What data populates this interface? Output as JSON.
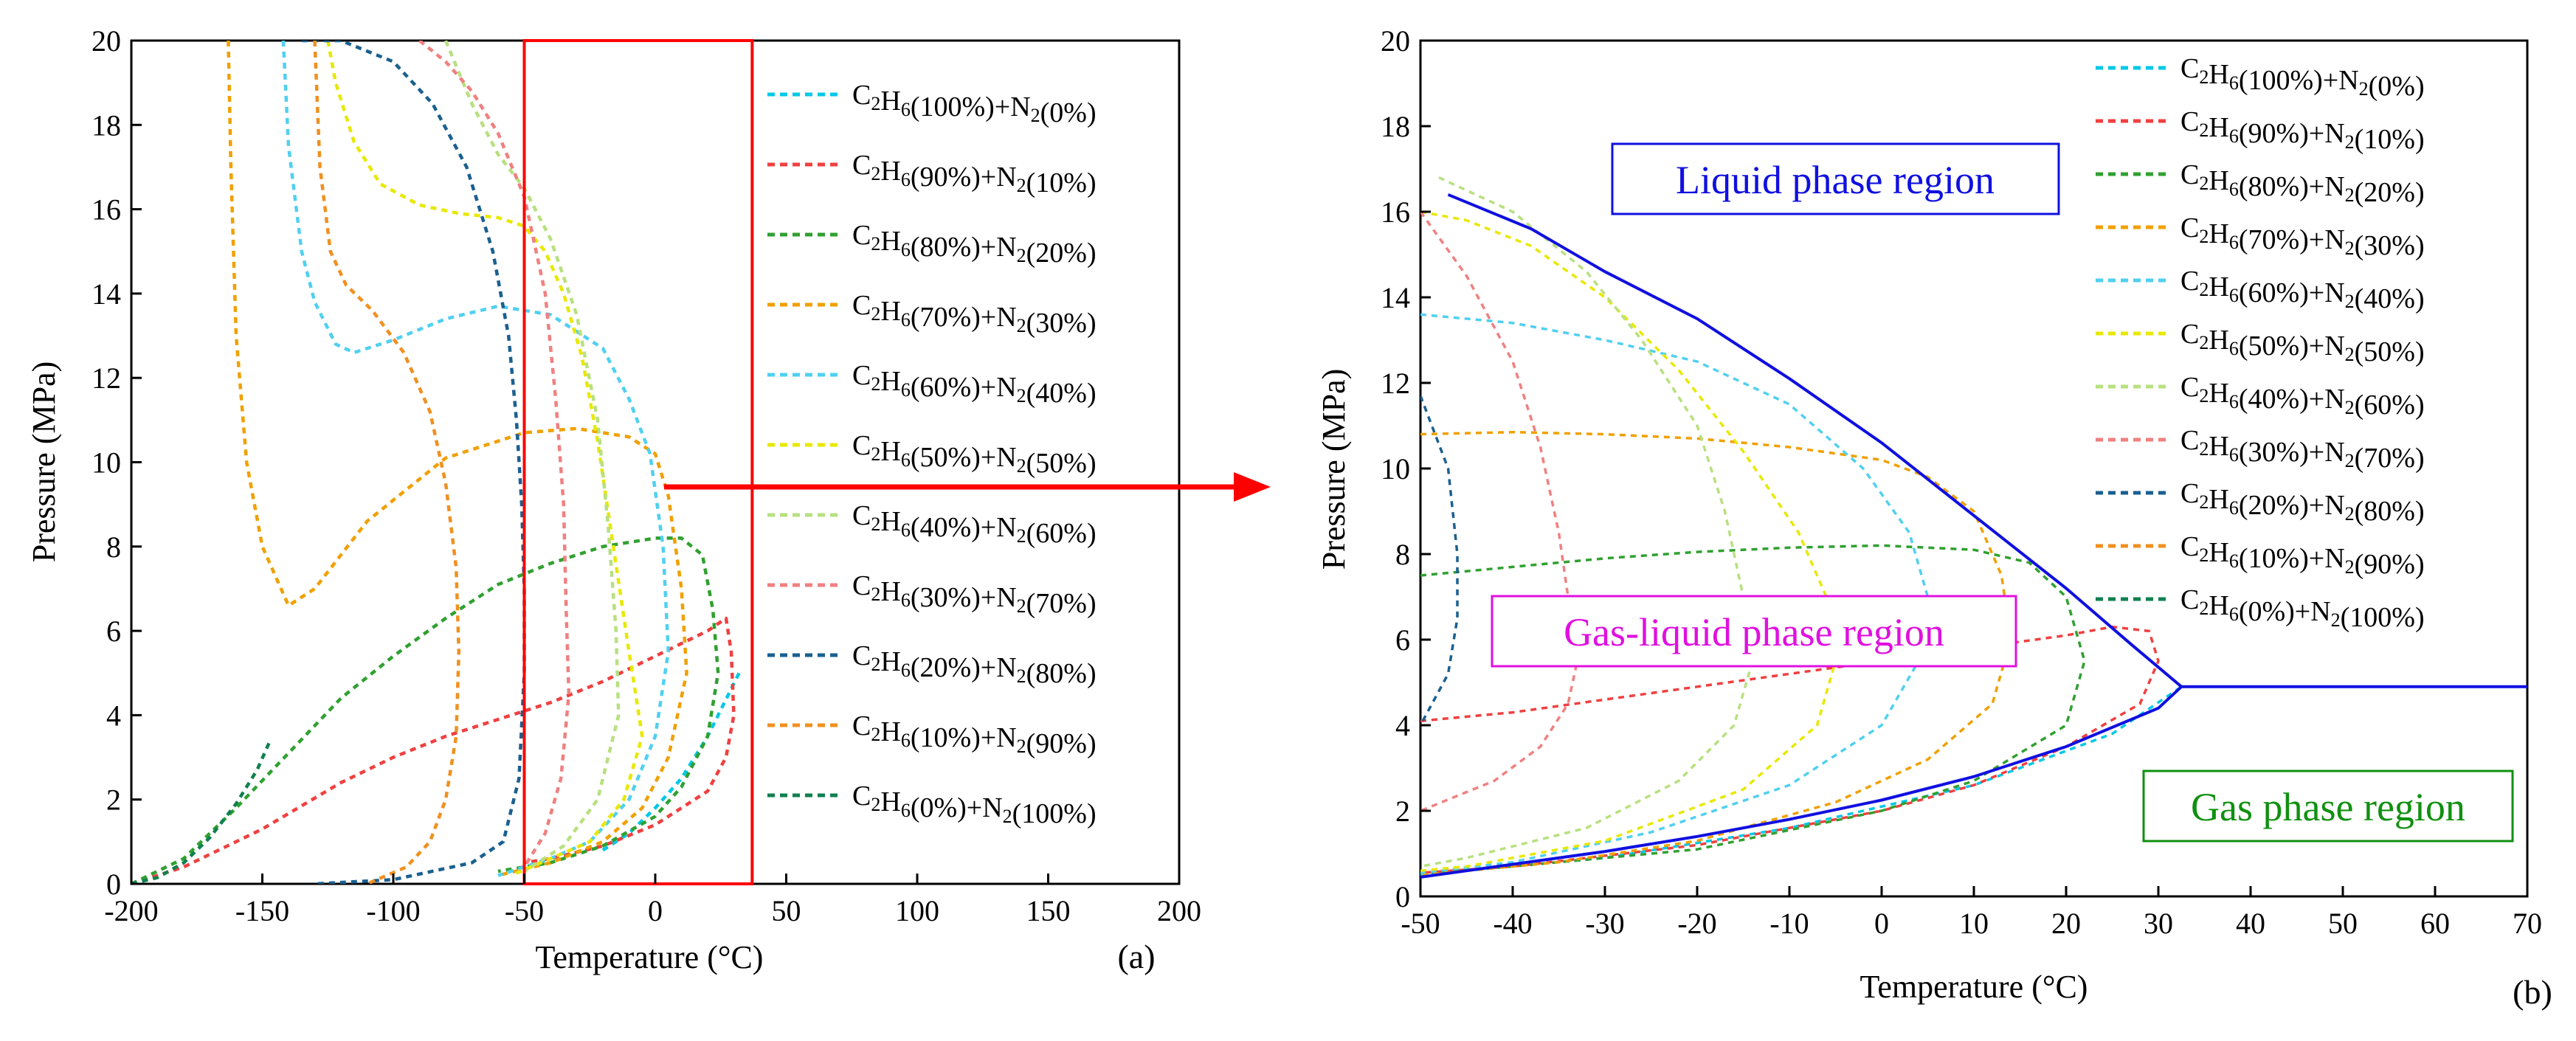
{
  "figure": {
    "arrow_color": "#ff0000",
    "box_color": "#ff0000"
  },
  "series_meta": [
    {
      "label": "C2H6(100%)+N2(0%)",
      "c2h6": "100%",
      "n2": "0%",
      "color": "#00c8e6",
      "dash": "8,7"
    },
    {
      "label": "C2H6(90%)+N2(10%)",
      "c2h6": "90%",
      "n2": "10%",
      "color": "#f04040",
      "dash": "8,7"
    },
    {
      "label": "C2H6(80%)+N2(20%)",
      "c2h6": "80%",
      "n2": "20%",
      "color": "#30a030",
      "dash": "8,7"
    },
    {
      "label": "C2H6(70%)+N2(30%)",
      "c2h6": "70%",
      "n2": "30%",
      "color": "#f0a000",
      "dash": "8,7"
    },
    {
      "label": "C2H6(60%)+N2(40%)",
      "c2h6": "60%",
      "n2": "40%",
      "color": "#50d0f0",
      "dash": "8,7"
    },
    {
      "label": "C2H6(50%)+N2(50%)",
      "c2h6": "50%",
      "n2": "50%",
      "color": "#e8e800",
      "dash": "8,7"
    },
    {
      "label": "C2H6(40%)+N2(60%)",
      "c2h6": "40%",
      "n2": "60%",
      "color": "#b8e080",
      "dash": "8,7"
    },
    {
      "label": "C2H6(30%)+N2(70%)",
      "c2h6": "30%",
      "n2": "70%",
      "color": "#f08080",
      "dash": "8,7"
    },
    {
      "label": "C2H6(20%)+N2(80%)",
      "c2h6": "20%",
      "n2": "80%",
      "color": "#1a6090",
      "dash": "8,7"
    },
    {
      "label": "C2H6(10%)+N2(90%)",
      "c2h6": "10%",
      "n2": "90%",
      "color": "#f09020",
      "dash": "8,7"
    },
    {
      "label": "C2H6(0%)+N2(100%)",
      "c2h6": "0%",
      "n2": "100%",
      "color": "#108050",
      "dash": "8,7"
    }
  ],
  "chart_data": [
    {
      "type": "line",
      "panel": "(a)",
      "xlabel": "Temperature (°C)",
      "ylabel": "Pressure (MPa)",
      "xlim": [
        -200,
        200
      ],
      "ylim": [
        0,
        20
      ],
      "xticks": [
        -200,
        -150,
        -100,
        -50,
        0,
        50,
        100,
        150,
        200
      ],
      "yticks": [
        0,
        2,
        4,
        6,
        8,
        10,
        12,
        14,
        16,
        18,
        20
      ],
      "highlight_box": {
        "x": [
          -50,
          37
        ],
        "y": [
          0,
          20
        ]
      },
      "series": [
        {
          "name": "C2H6(100%)+N2(0%)",
          "x": [
            -20,
            -10,
            0,
            10,
            20,
            32
          ],
          "y": [
            0.8,
            1.2,
            1.8,
            2.5,
            3.5,
            5.0
          ]
        },
        {
          "name": "C2H6(90%)+N2(10%)",
          "x": [
            -200,
            -180,
            -150,
            -120,
            -100,
            -80,
            -60,
            -40,
            -20,
            0,
            20,
            27,
            29,
            30,
            27,
            20,
            0,
            -20,
            -40,
            -50
          ],
          "y": [
            0,
            0.4,
            1.3,
            2.4,
            3.0,
            3.5,
            3.9,
            4.3,
            4.8,
            5.4,
            6.0,
            6.3,
            5.5,
            4.0,
            3.0,
            2.2,
            1.4,
            0.9,
            0.6,
            0.5
          ]
        },
        {
          "name": "C2H6(80%)+N2(20%)",
          "x": [
            -200,
            -180,
            -160,
            -140,
            -120,
            -100,
            -80,
            -60,
            -40,
            -20,
            0,
            10,
            18,
            22,
            24,
            20,
            10,
            0,
            -20,
            -40,
            -60
          ],
          "y": [
            0,
            0.6,
            1.8,
            3.1,
            4.4,
            5.4,
            6.3,
            7.1,
            7.6,
            8.0,
            8.2,
            8.2,
            7.8,
            6.5,
            5.0,
            3.5,
            2.3,
            1.6,
            0.9,
            0.5,
            0.3
          ]
        },
        {
          "name": "C2H6(70%)+N2(30%)",
          "x": [
            -163,
            -162,
            -160,
            -156,
            -150,
            -140,
            -130,
            -110,
            -80,
            -50,
            -30,
            -10,
            0,
            5,
            10,
            12,
            5,
            -5,
            -20,
            -40,
            -60
          ],
          "y": [
            20,
            17,
            13,
            10,
            8,
            6.6,
            7.0,
            8.6,
            10.1,
            10.7,
            10.8,
            10.6,
            10.2,
            9.2,
            7.0,
            5.0,
            3.0,
            1.8,
            1.0,
            0.5,
            0.2
          ]
        },
        {
          "name": "C2H6(60%)+N2(40%)",
          "x": [
            -142,
            -140,
            -138,
            -135,
            -130,
            -122,
            -115,
            -100,
            -80,
            -60,
            -40,
            -20,
            -10,
            -2,
            3,
            5,
            0,
            -10,
            -25,
            -40,
            -60
          ],
          "y": [
            20,
            17.5,
            16.5,
            15.0,
            13.8,
            12.8,
            12.6,
            12.9,
            13.4,
            13.7,
            13.5,
            12.7,
            11.5,
            10.2,
            8.0,
            5.5,
            3.5,
            2.0,
            1.0,
            0.6,
            0.2
          ]
        },
        {
          "name": "C2H6(50%)+N2(50%)",
          "x": [
            -125,
            -122,
            -115,
            -105,
            -90,
            -75,
            -60,
            -50,
            -42,
            -35,
            -28,
            -22,
            -16,
            -10,
            -5,
            -12,
            -25,
            -40,
            -55
          ],
          "y": [
            20,
            19,
            17.6,
            16.6,
            16.1,
            15.9,
            15.8,
            15.6,
            15.0,
            14.0,
            12.5,
            10.5,
            8.0,
            5.5,
            3.5,
            2.0,
            1.0,
            0.6,
            0.2
          ]
        },
        {
          "name": "C2H6(40%)+N2(60%)",
          "x": [
            -80,
            -70,
            -60,
            -50,
            -40,
            -30,
            -22,
            -18,
            -15,
            -14,
            -22,
            -35,
            -50
          ],
          "y": [
            20,
            18.5,
            17.3,
            16.5,
            15.3,
            13.5,
            11.0,
            8.5,
            6.0,
            4.0,
            2.0,
            0.9,
            0.3
          ]
        },
        {
          "name": "C2H6(30%)+N2(70%)",
          "x": [
            -90,
            -80,
            -70,
            -60,
            -50,
            -42,
            -38,
            -35,
            -34,
            -33,
            -36,
            -42,
            -50
          ],
          "y": [
            20,
            19.5,
            18.8,
            17.8,
            16.3,
            14.0,
            11.5,
            9.0,
            6.5,
            4.5,
            2.5,
            1.2,
            0.4
          ]
        },
        {
          "name": "C2H6(20%)+N2(80%)",
          "x": [
            -135,
            -120,
            -100,
            -85,
            -72,
            -62,
            -56,
            -53,
            -51,
            -50,
            -50,
            -52,
            -58,
            -70,
            -100,
            -130
          ],
          "y": [
            20,
            20,
            19.5,
            18.5,
            17.0,
            15.0,
            13.0,
            11.0,
            9.0,
            7.0,
            5.0,
            2.5,
            1.0,
            0.5,
            0.1,
            0
          ]
        },
        {
          "name": "C2H6(10%)+N2(90%)",
          "x": [
            -130,
            -128,
            -124,
            -118,
            -108,
            -96,
            -86,
            -80,
            -76,
            -75,
            -76,
            -80,
            -86,
            -95,
            -110
          ],
          "y": [
            20,
            17,
            15,
            14.2,
            13.6,
            12.6,
            11.2,
            9.5,
            7.5,
            5.5,
            3.5,
            2.0,
            1.0,
            0.4,
            0
          ]
        },
        {
          "name": "C2H6(0%)+N2(100%)",
          "x": [
            -200,
            -190,
            -180,
            -170,
            -160,
            -152,
            -147
          ],
          "y": [
            0,
            0.15,
            0.5,
            1.1,
            1.9,
            2.7,
            3.4
          ]
        }
      ]
    },
    {
      "type": "line",
      "panel": "(b)",
      "xlabel": "Temperature (°C)",
      "ylabel": "Pressure (MPa)",
      "xlim": [
        -50,
        70
      ],
      "ylim": [
        0,
        20
      ],
      "xticks": [
        -50,
        -40,
        -30,
        -20,
        -10,
        0,
        10,
        20,
        30,
        40,
        50,
        60,
        70
      ],
      "yticks": [
        0,
        2,
        4,
        6,
        8,
        10,
        12,
        14,
        16,
        18,
        20
      ],
      "envelope": {
        "name": "Phase envelope",
        "color": "#1010e0",
        "x": [
          -47,
          -38,
          -30,
          -20,
          -10,
          0,
          10,
          20,
          27,
          32.5,
          70
        ],
        "y": [
          16.4,
          15.6,
          14.6,
          13.5,
          12.1,
          10.6,
          8.9,
          7.2,
          5.9,
          4.9,
          4.9
        ],
        "x_lower": [
          -50,
          -40,
          -30,
          -20,
          -10,
          0,
          10,
          20,
          30,
          32.5
        ],
        "y_lower": [
          0.45,
          0.75,
          1.05,
          1.4,
          1.8,
          2.25,
          2.8,
          3.5,
          4.4,
          4.9
        ]
      },
      "regions": [
        {
          "label": "Liquid phase region",
          "color": "#1010e0"
        },
        {
          "label": "Gas-liquid phase region",
          "color": "#e010e0"
        },
        {
          "label": "Gas phase region",
          "color": "#109010"
        }
      ],
      "series": [
        {
          "name": "C2H6(100%)+N2(0%)",
          "x": [
            -50,
            -30,
            -10,
            10,
            25,
            32.5
          ],
          "y": [
            0.5,
            0.9,
            1.6,
            2.6,
            3.8,
            4.9
          ]
        },
        {
          "name": "C2H6(90%)+N2(10%)",
          "x": [
            -50,
            -40,
            -30,
            -20,
            -10,
            0,
            10,
            20,
            25,
            29,
            30,
            28,
            20,
            10,
            0,
            -20,
            -40,
            -50
          ],
          "y": [
            4.1,
            4.3,
            4.6,
            4.9,
            5.2,
            5.5,
            5.8,
            6.1,
            6.3,
            6.2,
            5.5,
            4.5,
            3.5,
            2.6,
            2.0,
            1.2,
            0.7,
            0.55
          ]
        },
        {
          "name": "C2H6(80%)+N2(20%)",
          "x": [
            -50,
            -40,
            -30,
            -20,
            -10,
            0,
            10,
            16,
            20,
            22,
            20,
            10,
            0,
            -20,
            -40,
            -50
          ],
          "y": [
            7.5,
            7.7,
            7.9,
            8.05,
            8.15,
            8.2,
            8.1,
            7.8,
            7.0,
            5.5,
            4.0,
            2.7,
            2.0,
            1.1,
            0.7,
            0.55
          ]
        },
        {
          "name": "C2H6(70%)+N2(30%)",
          "x": [
            -50,
            -40,
            -30,
            -20,
            -10,
            0,
            5,
            10,
            13,
            14,
            12,
            5,
            -5,
            -20,
            -35,
            -50
          ],
          "y": [
            10.8,
            10.85,
            10.8,
            10.7,
            10.5,
            10.2,
            9.8,
            9.0,
            7.5,
            6.0,
            4.5,
            3.2,
            2.2,
            1.3,
            0.8,
            0.5
          ]
        },
        {
          "name": "C2H6(60%)+N2(40%)",
          "x": [
            -50,
            -40,
            -30,
            -20,
            -10,
            -2,
            3,
            5,
            4,
            0,
            -10,
            -25,
            -40,
            -50
          ],
          "y": [
            13.6,
            13.4,
            13.0,
            12.5,
            11.5,
            10.0,
            8.5,
            7.0,
            5.5,
            4.0,
            2.6,
            1.5,
            0.8,
            0.55
          ]
        },
        {
          "name": "C2H6(50%)+N2(50%)",
          "x": [
            -50,
            -45,
            -38,
            -30,
            -22,
            -15,
            -9,
            -6,
            -5,
            -7,
            -15,
            -30,
            -45,
            -50
          ],
          "y": [
            16.0,
            15.8,
            15.2,
            14.0,
            12.3,
            10.4,
            8.5,
            7.0,
            5.5,
            4.0,
            2.5,
            1.3,
            0.7,
            0.6
          ]
        },
        {
          "name": "C2H6(40%)+N2(60%)",
          "x": [
            -48,
            -40,
            -32,
            -26,
            -20,
            -17,
            -15,
            -14,
            -16,
            -22,
            -32,
            -45,
            -50
          ],
          "y": [
            16.8,
            16.0,
            14.6,
            13.0,
            11.0,
            9.0,
            7.0,
            5.5,
            4.0,
            2.7,
            1.6,
            0.9,
            0.7
          ]
        },
        {
          "name": "C2H6(30%)+N2(70%)",
          "x": [
            -50,
            -45,
            -40,
            -37,
            -35,
            -34,
            -33,
            -34,
            -37,
            -42,
            -50
          ],
          "y": [
            16.0,
            14.5,
            12.5,
            10.5,
            8.5,
            7.0,
            5.5,
            4.5,
            3.5,
            2.7,
            2.0
          ]
        },
        {
          "name": "C2H6(20%)+N2(80%)",
          "x": [
            -50,
            -47,
            -46,
            -46,
            -47,
            -50
          ],
          "y": [
            11.7,
            10.0,
            8.0,
            6.5,
            5.2,
            4.0
          ]
        }
      ]
    }
  ]
}
